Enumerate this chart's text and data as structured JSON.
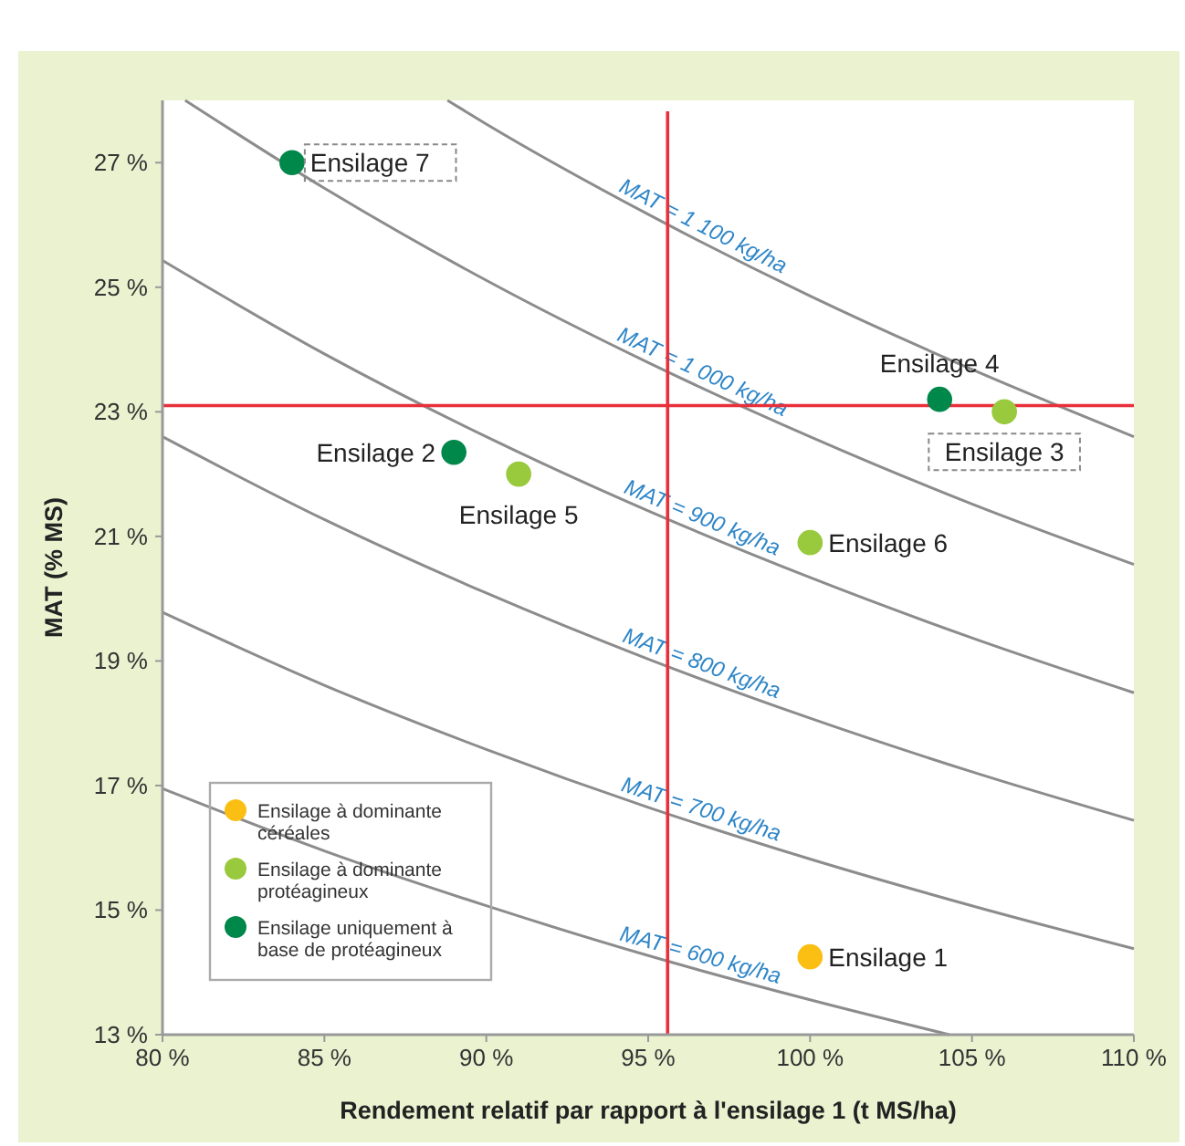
{
  "chart_data": {
    "type": "scatter",
    "xlabel": "Rendement relatif par rapport à l'ensilage 1 (t MS/ha)",
    "ylabel": "MAT (% MS)",
    "xlim": [
      80,
      110
    ],
    "ylim": [
      13,
      28
    ],
    "xticks": [
      {
        "value": 80,
        "label": "80 %"
      },
      {
        "value": 85,
        "label": "85 %"
      },
      {
        "value": 90,
        "label": "90 %"
      },
      {
        "value": 95,
        "label": "95 %"
      },
      {
        "value": 100,
        "label": "100 %"
      },
      {
        "value": 105,
        "label": "105 %"
      },
      {
        "value": 110,
        "label": "110 %"
      }
    ],
    "yticks": [
      {
        "value": 13,
        "label": "13 %"
      },
      {
        "value": 15,
        "label": "15 %"
      },
      {
        "value": 17,
        "label": "17 %"
      },
      {
        "value": 19,
        "label": "19 %"
      },
      {
        "value": 21,
        "label": "21 %"
      },
      {
        "value": 23,
        "label": "23 %"
      },
      {
        "value": 25,
        "label": "25 %"
      },
      {
        "value": 27,
        "label": "27 %"
      }
    ],
    "grid": false,
    "legend": "bottom left",
    "marker": "circle",
    "series": [
      {
        "type": "line",
        "name": "MAT = 600 kg/ha",
        "color": "#8c8c8c",
        "marker": "none",
        "x": [
          80,
          85,
          90,
          95,
          100,
          104.3
        ],
        "values": [
          16.95,
          15.95,
          15.07,
          14.27,
          13.56,
          13.0
        ]
      },
      {
        "type": "line",
        "name": "MAT = 700 kg/ha",
        "color": "#8c8c8c",
        "marker": "none",
        "x": [
          80,
          85,
          90,
          95,
          100,
          105,
          110
        ],
        "values": [
          19.78,
          18.61,
          17.58,
          16.65,
          15.82,
          15.07,
          14.38
        ]
      },
      {
        "type": "line",
        "name": "MAT = 800 kg/ha",
        "color": "#8c8c8c",
        "marker": "none",
        "x": [
          80,
          85,
          90,
          95,
          100,
          105,
          110
        ],
        "values": [
          22.6,
          21.27,
          20.09,
          19.03,
          18.08,
          17.22,
          16.44
        ]
      },
      {
        "type": "line",
        "name": "MAT = 900 kg/ha",
        "color": "#8c8c8c",
        "marker": "none",
        "x": [
          80,
          85,
          90,
          95,
          100,
          105,
          110
        ],
        "values": [
          25.43,
          23.93,
          22.6,
          21.41,
          20.34,
          19.37,
          18.49
        ]
      },
      {
        "type": "line",
        "name": "MAT = 1 000 kg/ha",
        "color": "#8c8c8c",
        "marker": "none",
        "x": [
          80.7,
          85,
          90,
          95,
          100,
          105,
          110
        ],
        "values": [
          28.0,
          26.59,
          25.11,
          23.79,
          22.6,
          21.52,
          20.55
        ]
      },
      {
        "type": "line",
        "name": "MAT = 1 100 kg/ha",
        "color": "#8c8c8c",
        "marker": "none",
        "x": [
          88.8,
          90,
          95,
          100,
          105,
          110
        ],
        "values": [
          28.0,
          27.62,
          26.17,
          24.86,
          23.68,
          22.6
        ]
      },
      {
        "type": "scatter",
        "name": "Ensilage à dominante céréales",
        "color": "#fbbf14",
        "x": [
          100
        ],
        "values": [
          14.25
        ]
      },
      {
        "type": "scatter",
        "name": "Ensilage à dominante protéagineux",
        "color": "#99c93c",
        "x": [
          106,
          91,
          100
        ],
        "values": [
          23.0,
          22.0,
          20.9
        ]
      },
      {
        "type": "scatter",
        "name": "Ensilage uniquement à base de protéagineux",
        "color": "#00874a",
        "x": [
          89,
          104,
          84
        ],
        "values": [
          22.35,
          23.2,
          27.0
        ]
      }
    ],
    "ref_lines": [
      {
        "axis": "x",
        "value": 95.6,
        "color": "#e8303a"
      },
      {
        "axis": "y",
        "value": 23.1,
        "color": "#e8303a"
      }
    ],
    "annotations": [
      {
        "text": "Ensilage 1",
        "x": 100,
        "y": 14.25
      },
      {
        "text": "Ensilage 2",
        "x": 89,
        "y": 22.35
      },
      {
        "text": "Ensilage 3",
        "x": 106,
        "y": 23.0
      },
      {
        "text": "Ensilage 4",
        "x": 104,
        "y": 23.2
      },
      {
        "text": "Ensilage 5",
        "x": 91,
        "y": 22.0
      },
      {
        "text": "Ensilage 6",
        "x": 100,
        "y": 20.9
      },
      {
        "text": "Ensilage 7",
        "x": 84,
        "y": 27.0
      }
    ]
  }
}
